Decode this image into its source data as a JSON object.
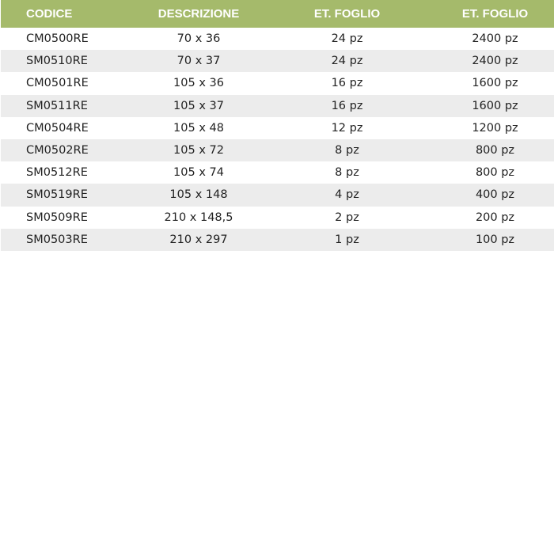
{
  "table": {
    "header_color": "#a5ba6b",
    "stripe_color": "#ececec",
    "headers": [
      "CODICE",
      "DESCRIZIONE",
      "ET. FOGLIO",
      "ET. FOGLIO"
    ],
    "rows": [
      [
        "CM0500RE",
        "70 x 36",
        "24 pz",
        "2400 pz"
      ],
      [
        "SM0510RE",
        "70 x 37",
        "24 pz",
        "2400 pz"
      ],
      [
        "CM0501RE",
        "105 x 36",
        "16 pz",
        "1600 pz"
      ],
      [
        "SM0511RE",
        "105 x 37",
        "16 pz",
        "1600 pz"
      ],
      [
        "CM0504RE",
        "105 x 48",
        "12 pz",
        "1200 pz"
      ],
      [
        "CM0502RE",
        "105 x 72",
        "8 pz",
        "800 pz"
      ],
      [
        "SM0512RE",
        "105 x 74",
        "8 pz",
        "800 pz"
      ],
      [
        "SM0519RE",
        "105 x 148",
        "4 pz",
        "400 pz"
      ],
      [
        "SM0509RE",
        "210 x 148,5",
        "2 pz",
        "200 pz"
      ],
      [
        "SM0503RE",
        "210 x 297",
        "1 pz",
        "100 pz"
      ]
    ]
  }
}
